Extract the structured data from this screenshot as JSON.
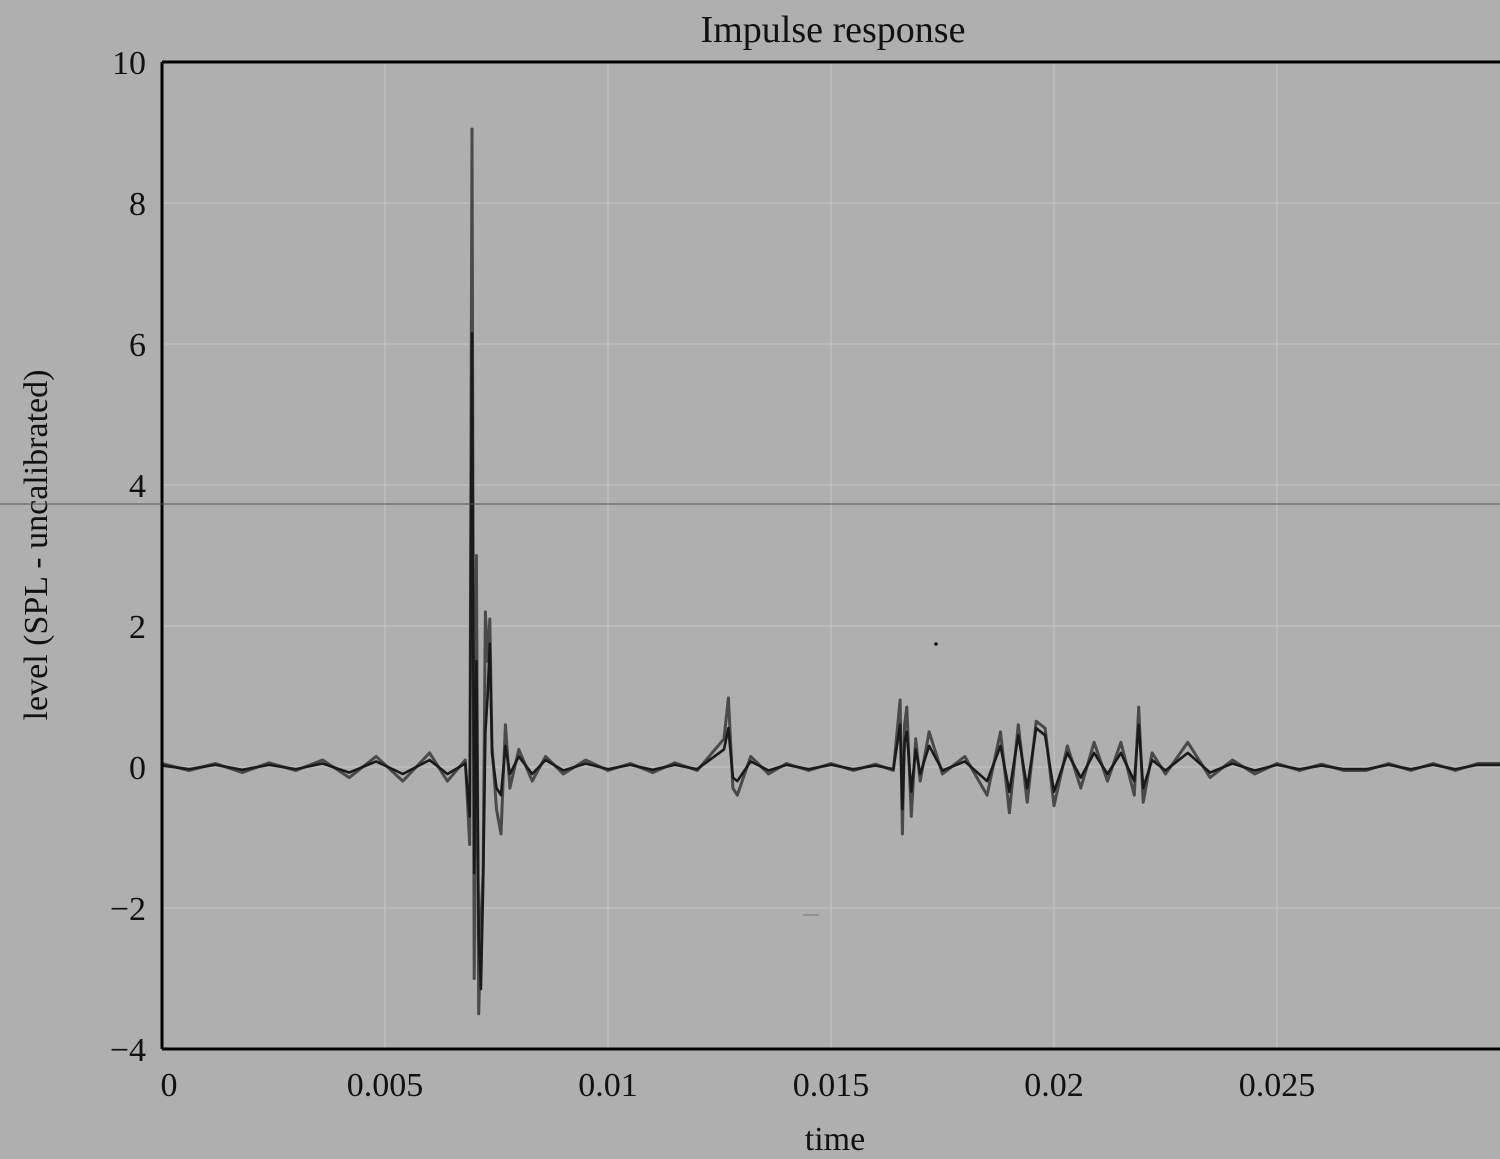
{
  "chart_data": {
    "type": "line",
    "title": "Impulse response",
    "xlabel": "time",
    "ylabel": "level (SPL - uncalibrated)",
    "xlim": [
      0,
      0.03
    ],
    "ylim": [
      -4,
      10
    ],
    "xticks": [
      0,
      0.005,
      0.01,
      0.015,
      0.02,
      0.025
    ],
    "xtick_labels": [
      "0",
      "0.005",
      "0.01",
      "0.015",
      "0.02",
      "0.025"
    ],
    "yticks": [
      -4,
      -2,
      0,
      2,
      4,
      6,
      8,
      10
    ],
    "ytick_labels": [
      "−4",
      "−2",
      "0",
      "2",
      "4",
      "6",
      "8",
      "10"
    ],
    "grid": true,
    "legend": "none",
    "colors": {
      "background": "#afafaf",
      "grid": "#c4c4c4",
      "axes": "#000000"
    },
    "series": [
      {
        "color": "#4a4a4a",
        "x": [
          0,
          0.0006,
          0.0012,
          0.0018,
          0.0024,
          0.003,
          0.0036,
          0.0042,
          0.0048,
          0.0054,
          0.006,
          0.0064,
          0.0068,
          0.0069,
          0.00695,
          0.007,
          0.00705,
          0.0071,
          0.00715,
          0.0072,
          0.00725,
          0.0073,
          0.00735,
          0.0074,
          0.0075,
          0.0076,
          0.0077,
          0.0078,
          0.008,
          0.0083,
          0.0086,
          0.009,
          0.0095,
          0.01,
          0.0105,
          0.011,
          0.0115,
          0.012,
          0.0126,
          0.0127,
          0.0128,
          0.0129,
          0.0132,
          0.0136,
          0.014,
          0.0145,
          0.015,
          0.0155,
          0.016,
          0.0164,
          0.01655,
          0.0166,
          0.01665,
          0.0167,
          0.0168,
          0.0169,
          0.017,
          0.0172,
          0.0175,
          0.018,
          0.0185,
          0.0188,
          0.019,
          0.0192,
          0.0194,
          0.0196,
          0.0198,
          0.02,
          0.0203,
          0.0206,
          0.0209,
          0.0212,
          0.0215,
          0.0218,
          0.0219,
          0.022,
          0.0222,
          0.0225,
          0.023,
          0.0235,
          0.024,
          0.0245,
          0.025,
          0.0255,
          0.026,
          0.0265,
          0.027,
          0.0275,
          0.028,
          0.0285,
          0.029,
          0.0295,
          0.03
        ],
        "y": [
          0.05,
          -0.05,
          0.05,
          -0.08,
          0.06,
          -0.05,
          0.1,
          -0.15,
          0.15,
          -0.2,
          0.2,
          -0.2,
          0.1,
          -1.1,
          9.05,
          -3.0,
          3.0,
          -3.5,
          -2.2,
          -1.5,
          2.2,
          1.5,
          2.1,
          0.3,
          -0.6,
          -0.95,
          0.6,
          -0.3,
          0.25,
          -0.2,
          0.15,
          -0.1,
          0.1,
          -0.05,
          0.05,
          -0.08,
          0.06,
          -0.05,
          0.4,
          0.98,
          -0.3,
          -0.4,
          0.15,
          -0.1,
          0.05,
          -0.05,
          0.05,
          -0.05,
          0.04,
          -0.05,
          0.95,
          -0.95,
          0.6,
          0.85,
          -0.7,
          0.4,
          -0.2,
          0.5,
          -0.1,
          0.15,
          -0.4,
          0.5,
          -0.65,
          0.6,
          -0.5,
          0.65,
          0.55,
          -0.55,
          0.3,
          -0.3,
          0.35,
          -0.2,
          0.35,
          -0.4,
          0.85,
          -0.5,
          0.2,
          -0.1,
          0.35,
          -0.15,
          0.1,
          -0.1,
          0.05,
          -0.05,
          0.04,
          -0.05,
          -0.05,
          0.05,
          -0.05,
          0.05,
          -0.05,
          0.05,
          0.05
        ]
      },
      {
        "color": "#1a1a1a",
        "x": [
          0,
          0.0006,
          0.0012,
          0.0018,
          0.0024,
          0.003,
          0.0036,
          0.0042,
          0.0048,
          0.0054,
          0.006,
          0.0064,
          0.0068,
          0.0069,
          0.00695,
          0.007,
          0.00705,
          0.0071,
          0.00715,
          0.0072,
          0.00725,
          0.0073,
          0.00735,
          0.0074,
          0.0075,
          0.0076,
          0.0077,
          0.0078,
          0.008,
          0.0083,
          0.0086,
          0.009,
          0.0095,
          0.01,
          0.0105,
          0.011,
          0.0115,
          0.012,
          0.0126,
          0.0127,
          0.0128,
          0.0129,
          0.0132,
          0.0136,
          0.014,
          0.0145,
          0.015,
          0.0155,
          0.016,
          0.0164,
          0.01655,
          0.0166,
          0.01665,
          0.0167,
          0.0168,
          0.0169,
          0.017,
          0.0172,
          0.0175,
          0.018,
          0.0185,
          0.0188,
          0.019,
          0.0192,
          0.0194,
          0.0196,
          0.0198,
          0.02,
          0.0203,
          0.0206,
          0.0209,
          0.0212,
          0.0215,
          0.0218,
          0.0219,
          0.022,
          0.0222,
          0.0225,
          0.023,
          0.0235,
          0.024,
          0.0245,
          0.025,
          0.0255,
          0.026,
          0.0265,
          0.027,
          0.0275,
          0.028,
          0.0285,
          0.029,
          0.0295,
          0.03
        ],
        "y": [
          0.02,
          -0.03,
          0.03,
          -0.04,
          0.03,
          -0.03,
          0.05,
          -0.08,
          0.08,
          -0.1,
          0.1,
          -0.1,
          0.05,
          -0.7,
          6.15,
          -1.5,
          1.5,
          -2.4,
          -3.15,
          -1.7,
          0.5,
          1.0,
          1.75,
          0.2,
          -0.3,
          -0.4,
          0.3,
          -0.1,
          0.15,
          -0.1,
          0.1,
          -0.05,
          0.05,
          -0.03,
          0.03,
          -0.04,
          0.03,
          -0.03,
          0.25,
          0.55,
          -0.15,
          -0.2,
          0.08,
          -0.05,
          0.03,
          -0.03,
          0.03,
          -0.03,
          0.02,
          -0.03,
          0.6,
          -0.6,
          0.35,
          0.5,
          -0.35,
          0.25,
          -0.1,
          0.3,
          -0.05,
          0.08,
          -0.2,
          0.3,
          -0.35,
          0.45,
          -0.3,
          0.55,
          0.45,
          -0.35,
          0.2,
          -0.15,
          0.2,
          -0.1,
          0.2,
          -0.2,
          0.6,
          -0.3,
          0.1,
          -0.05,
          0.2,
          -0.08,
          0.05,
          -0.05,
          0.03,
          -0.03,
          0.02,
          -0.03,
          -0.03,
          0.03,
          -0.03,
          0.03,
          -0.03,
          0.03,
          0.03
        ]
      }
    ]
  }
}
